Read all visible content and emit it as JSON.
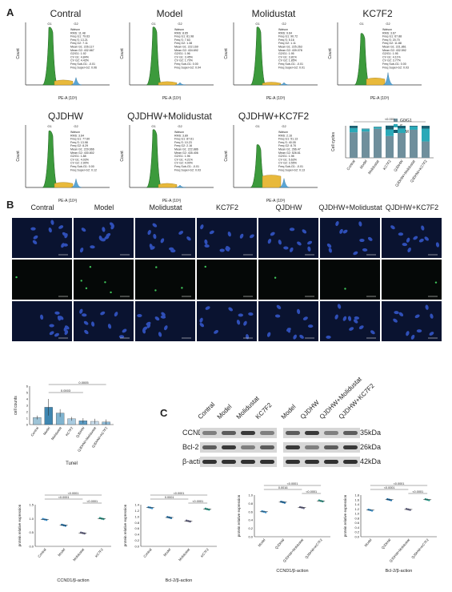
{
  "panels": {
    "A": "A",
    "B": "B",
    "C": "C"
  },
  "histograms": [
    {
      "title": "Contral",
      "stats": [
        "Watson",
        "RMS: 11.48",
        "Freq G1: 79.63",
        "Freq S: 13.21",
        "Freq G2: 7.11",
        "Mean G1: 226.117",
        "Mean G2: 432.667",
        "G2/G1: 1.92",
        "CV G1: 4.84%",
        "CV G2: 4.43%",
        "Freq Sub-G1: -0.01",
        "Freq Super-G2: 0.06"
      ]
    },
    {
      "title": "Model",
      "stats": [
        "Watson",
        "RMS: 8.65",
        "Freq G1: 81.98",
        "Freq S: 7.63",
        "Freq G2: 1.38",
        "Mean G1: 222.169",
        "Mean G2: 434.692",
        "G2/G1: 1.96",
        "CV G1: 3.45%",
        "CV G2: 1.70%",
        "Freq Sub-G1: 0.00",
        "Freq Super-G2: 0.04"
      ]
    },
    {
      "title": "Molidustat",
      "stats": [
        "Watson",
        "RMS: 9.64",
        "Freq G1: 90.72",
        "Freq S: 5.16",
        "Freq G2: 1.11",
        "Mean G1: 225.263",
        "Mean G2: 439.078",
        "G2/G1: 1.95",
        "CV G1: 3.81%",
        "CV G2: 1.85%",
        "Freq Sub-G1: -0.01",
        "Freq Super-G2: 0.01"
      ]
    },
    {
      "title": "KC7F2",
      "stats": [
        "Watson",
        "RMS: 3.67",
        "Freq G1: 67.88",
        "Freq S: 20.70",
        "Freq G2: 11.88",
        "Mean G1: 221.861",
        "Mean G2: 432.592",
        "G2/G1: 1.95",
        "CV G1: 4.11%",
        "CV G2: 3.77%",
        "Freq Sub-G1: 0.00",
        "Freq Super-G2: 0.03"
      ]
    },
    {
      "title": "QJDHW",
      "stats": [
        "Watson",
        "RMS: 3.64",
        "Freq G1: 77.60",
        "Freq S: 13.98",
        "Freq G2: 8.29",
        "Mean G1: 229.666",
        "Mean G2: 430.802",
        "G2/G1: 1.88",
        "CV G1: 4.03%",
        "CV G2: 2.90%",
        "Freq Sub-G1: 0.00",
        "Freq Super-G2: 0.12"
      ]
    },
    {
      "title": "QJDHW+Molidustat",
      "stats": [
        "Watson",
        "RMS: 3.89",
        "Freq G1: 87.61",
        "Freq S: 10.23",
        "Freq G2: 2.16",
        "Mean G1: 222.886",
        "Mean G2: 435.406",
        "G2/G1: 1.96",
        "CV G1: 4.21%",
        "CV G2: 4.00%",
        "Freq Sub-G1: -0.01",
        "Freq Super-G2: 0.03"
      ]
    },
    {
      "title": "QJDHW+KC7F2",
      "stats": [
        "Watson",
        "RMS: 2.16",
        "Freq G1: 51.13",
        "Freq S: 40.05",
        "Freq G2: 8.70",
        "Mean G1: 266.47",
        "Mean G2: 526.61",
        "G2/G1: 1.98",
        "CV G1: 5.63%",
        "CV G2: 3.55%",
        "Freq Sub-G1: -0.01",
        "Freq Super-G2: 0.13"
      ]
    }
  ],
  "hist_axis": {
    "xlabel": "PE-A (10³)",
    "ylabel": "Count",
    "g1": "G1",
    "g2": "G2"
  },
  "cellcycle_chart": {
    "ylabel": "Cell cycles",
    "legend": [
      "G0/G1",
      "S",
      "G2M"
    ],
    "colors": [
      "#6f8f9c",
      "#2aa9b8",
      "#1a5e70"
    ],
    "categories": [
      "Contral",
      "Model",
      "Molidustat",
      "KC7F2",
      "QJDHW",
      "QJDHW+Molidustat",
      "QJDHW+KC7F2"
    ],
    "stacks": [
      [
        79.6,
        13.2,
        7.1
      ],
      [
        82.0,
        7.6,
        1.4
      ],
      [
        90.7,
        5.2,
        1.1
      ],
      [
        67.9,
        20.7,
        11.9
      ],
      [
        77.6,
        14.0,
        8.3
      ],
      [
        87.6,
        10.2,
        2.2
      ],
      [
        51.1,
        40.1,
        8.7
      ]
    ],
    "sig": "<0.001"
  },
  "micro_columns": [
    "Contral",
    "Model",
    "Molidustat",
    "KC7F2",
    "QJDHW",
    "QJDHW+Molidustat",
    "QJDHW+KC7F2"
  ],
  "tunel_chart": {
    "type": "bar",
    "ylabel": "cell counts",
    "xlabel": "Tunel",
    "categories": [
      "Contral",
      "Model",
      "Molidustat",
      "KC7F2",
      "QJDHW",
      "QJDHW+Molidustat",
      "QJDHW+KC7F2"
    ],
    "values": [
      1.1,
      2.7,
      1.8,
      0.9,
      0.6,
      0.5,
      0.4
    ],
    "errors": [
      0.3,
      1.3,
      0.6,
      0.3,
      0.4,
      0.4,
      0.4
    ],
    "ylim": [
      0,
      6
    ],
    "yticks": [
      "0",
      "1",
      "2",
      "3",
      "4",
      "5",
      "6"
    ],
    "sig": [
      "0.0005",
      "0.0003"
    ],
    "colors": [
      "#9ec3d6",
      "#3f86b0",
      "#7fb3cf",
      "#a9cbe0",
      "#5c9cc4",
      "#c8dcea",
      "#8db9d6"
    ]
  },
  "western": {
    "lanes_left": [
      "Contral",
      "Model",
      "Molidustat",
      "KC7F2"
    ],
    "lanes_right": [
      "Model",
      "QJDHW",
      "QJDHW+Molidustat",
      "QJDHW+KC7F2"
    ],
    "rows": [
      "CCND1",
      "Bcl-2",
      "β-actin"
    ],
    "sizes": [
      "35kDa",
      "26kDa",
      "42kDa"
    ]
  },
  "quant_charts": [
    {
      "xlabel": "CCND1/β-action",
      "ylabel": "protein relative expression",
      "categories": [
        "Contral",
        "Model",
        "Molidustat",
        "KC7F2"
      ],
      "values": [
        0.97,
        0.76,
        0.48,
        1.0
      ],
      "ylim": [
        0,
        1.5
      ],
      "yticks": [
        "0.0",
        "0.5",
        "1.0",
        "1.5"
      ],
      "sig": [
        "<0.0001",
        "<0.0001",
        "<0.0001"
      ]
    },
    {
      "xlabel": "Bcl-2/β-action",
      "ylabel": "protein relative expression",
      "categories": [
        "Contral",
        "Model",
        "Molidustat",
        "KC7F2"
      ],
      "values": [
        1.3,
        0.97,
        0.85,
        1.25
      ],
      "ylim": [
        0,
        1.4
      ],
      "yticks": [
        "0.0",
        "0.2",
        "0.4",
        "0.6",
        "0.8",
        "1.0",
        "1.2",
        "1.4"
      ],
      "sig": [
        "<0.0001",
        "0.0001",
        "<0.0001"
      ]
    },
    {
      "xlabel": "CCND1/β-action",
      "ylabel": "protein relative expression",
      "categories": [
        "Model",
        "QJDHW",
        "QJDHW+Molidustat",
        "QJDHW+KC7F2"
      ],
      "values": [
        0.6,
        0.83,
        0.7,
        0.86
      ],
      "ylim": [
        0,
        1.0
      ],
      "yticks": [
        "0.0",
        "0.2",
        "0.4",
        "0.6",
        "0.8",
        "1.0"
      ],
      "sig": [
        "<0.0001",
        "0.0016",
        "<0.0001"
      ]
    },
    {
      "xlabel": "Bcl-2/β-action",
      "ylabel": "protein relative expression",
      "categories": [
        "Model",
        "QJDHW",
        "QJDHW+Molidustat",
        "QJDHW+KC7F2"
      ],
      "values": [
        1.15,
        1.6,
        1.18,
        1.6
      ],
      "ylim": [
        0.0,
        1.8
      ],
      "yticks": [
        "0.0",
        "0.2",
        "0.4",
        "0.6",
        "0.8",
        "1.0",
        "1.2",
        "1.4",
        "1.6",
        "1.8"
      ],
      "sig": [
        "<0.0001",
        "<0.0001",
        "<0.0001"
      ]
    }
  ]
}
